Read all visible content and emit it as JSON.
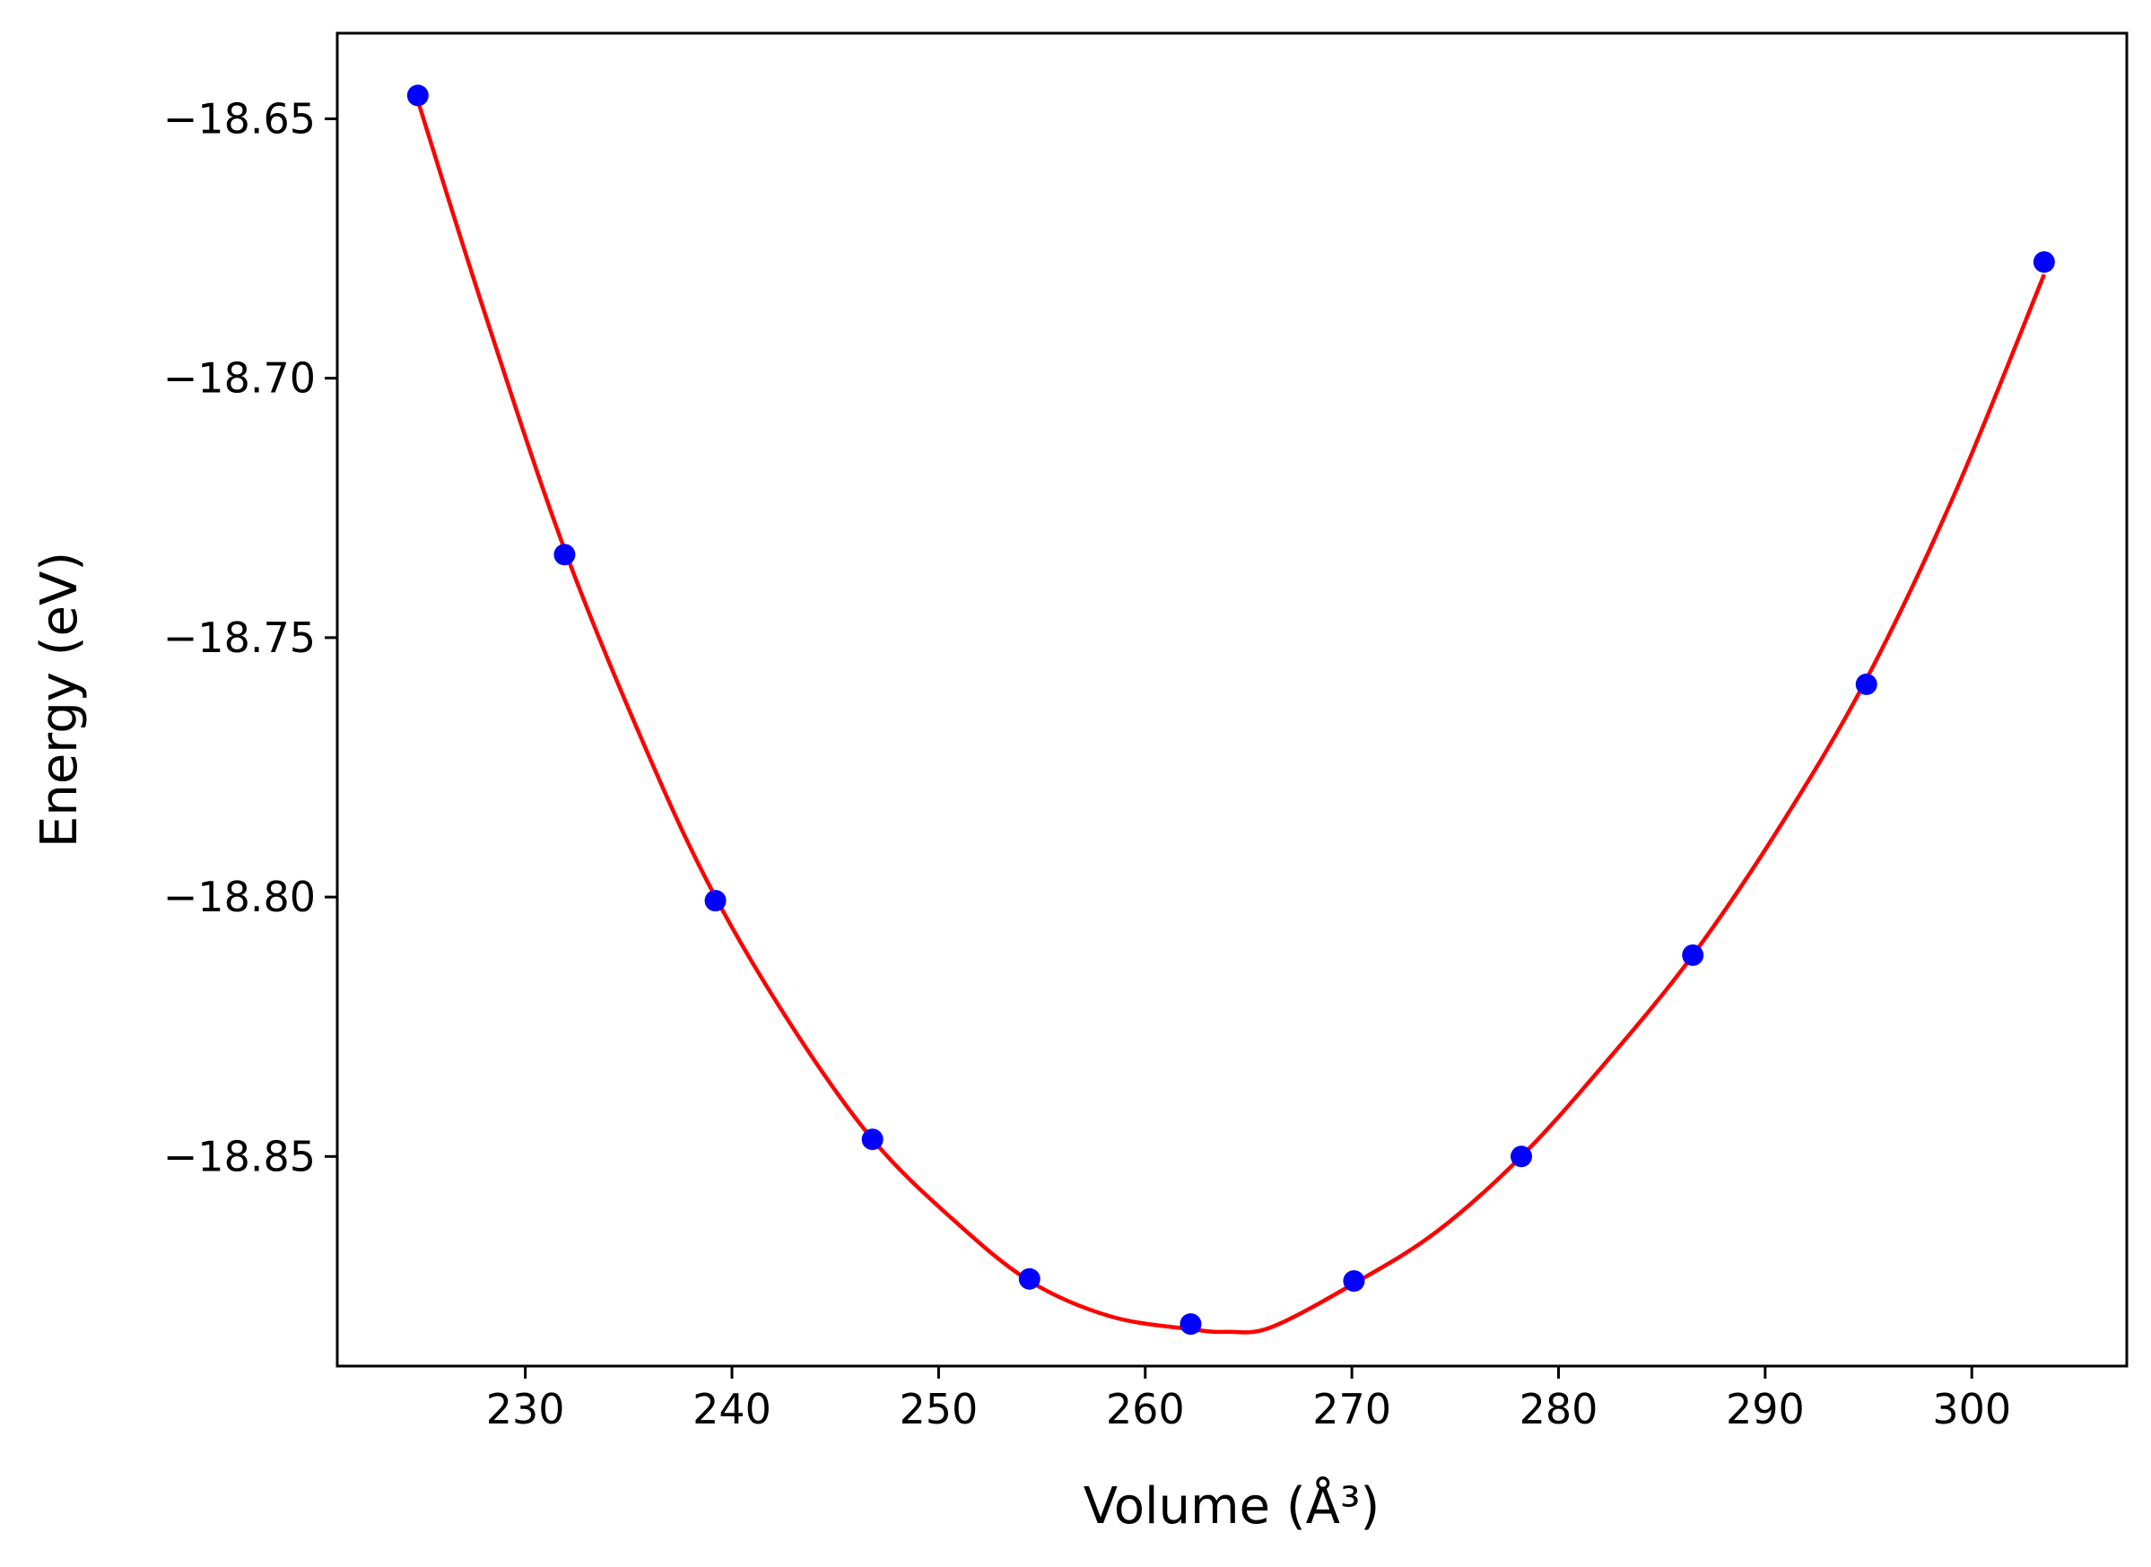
{
  "chart_data": {
    "type": "scatter",
    "xlabel": "Volume (Å³)",
    "ylabel": "Energy (eV)",
    "xlim": [
      220.9,
      307.5
    ],
    "ylim": [
      -18.8904,
      -18.6335
    ],
    "x_ticks": [
      230,
      240,
      250,
      260,
      270,
      280,
      290,
      300
    ],
    "x_tick_labels": [
      "230",
      "240",
      "250",
      "260",
      "270",
      "280",
      "290",
      "300"
    ],
    "y_ticks": [
      -18.65,
      -18.7,
      -18.75,
      -18.8,
      -18.85
    ],
    "y_tick_labels": [
      "−18.65",
      "−18.70",
      "−18.75",
      "−18.80",
      "−18.85"
    ],
    "grid": false,
    "series": [
      {
        "kind": "points",
        "color": "#0000ff",
        "x": [
          224.8,
          231.9,
          239.2,
          246.8,
          254.4,
          262.2,
          270.1,
          278.2,
          286.5,
          294.9,
          303.5
        ],
        "y": [
          -18.6455,
          -18.734,
          -18.8007,
          -18.8467,
          -18.8736,
          -18.8823,
          -18.874,
          -18.85,
          -18.8112,
          -18.759,
          -18.6776
        ]
      },
      {
        "kind": "fit-curve",
        "color": "#ff0000",
        "x": [
          224.8,
          228.0,
          231.9,
          236.0,
          239.2,
          243.0,
          246.8,
          250.6,
          254.4,
          258.3,
          262.2,
          264.0,
          266.1,
          270.1,
          274.1,
          278.2,
          282.3,
          286.5,
          290.7,
          294.9,
          299.2,
          303.5
        ],
        "y": [
          -18.6465,
          -18.687,
          -18.733,
          -18.773,
          -18.8,
          -18.8255,
          -18.8467,
          -18.8618,
          -18.874,
          -18.8808,
          -18.8833,
          -18.8838,
          -18.8829,
          -18.8745,
          -18.8645,
          -18.85,
          -18.8318,
          -18.8112,
          -18.7865,
          -18.758,
          -18.722,
          -18.68
        ]
      }
    ]
  }
}
